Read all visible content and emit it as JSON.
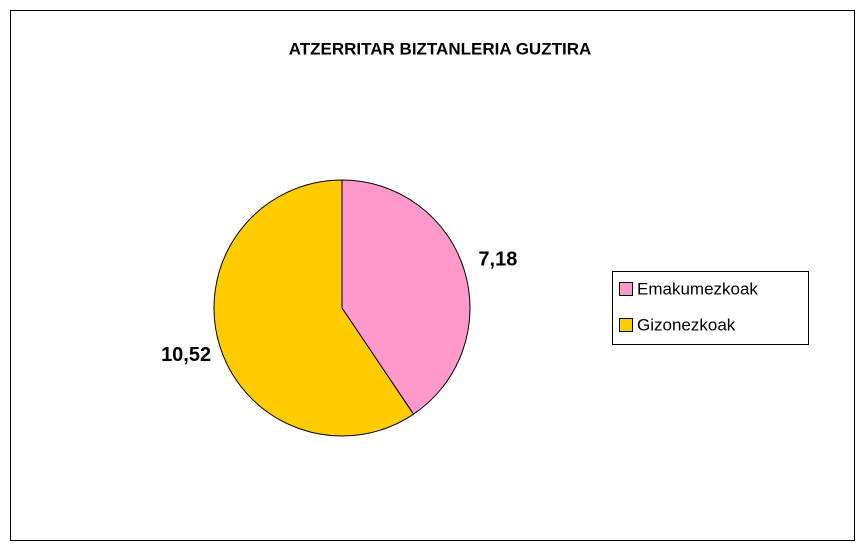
{
  "chart_data": {
    "type": "pie",
    "title": "ATZERRITAR BIZTANLERIA GUZTIRA",
    "categories": [
      "Emakumezkoak",
      "Gizonezkoak"
    ],
    "values": [
      7.18,
      10.52
    ],
    "value_labels": [
      "7,18",
      "10,52"
    ],
    "colors": [
      "#ff99cc",
      "#ffcc00"
    ],
    "legend": "right"
  }
}
